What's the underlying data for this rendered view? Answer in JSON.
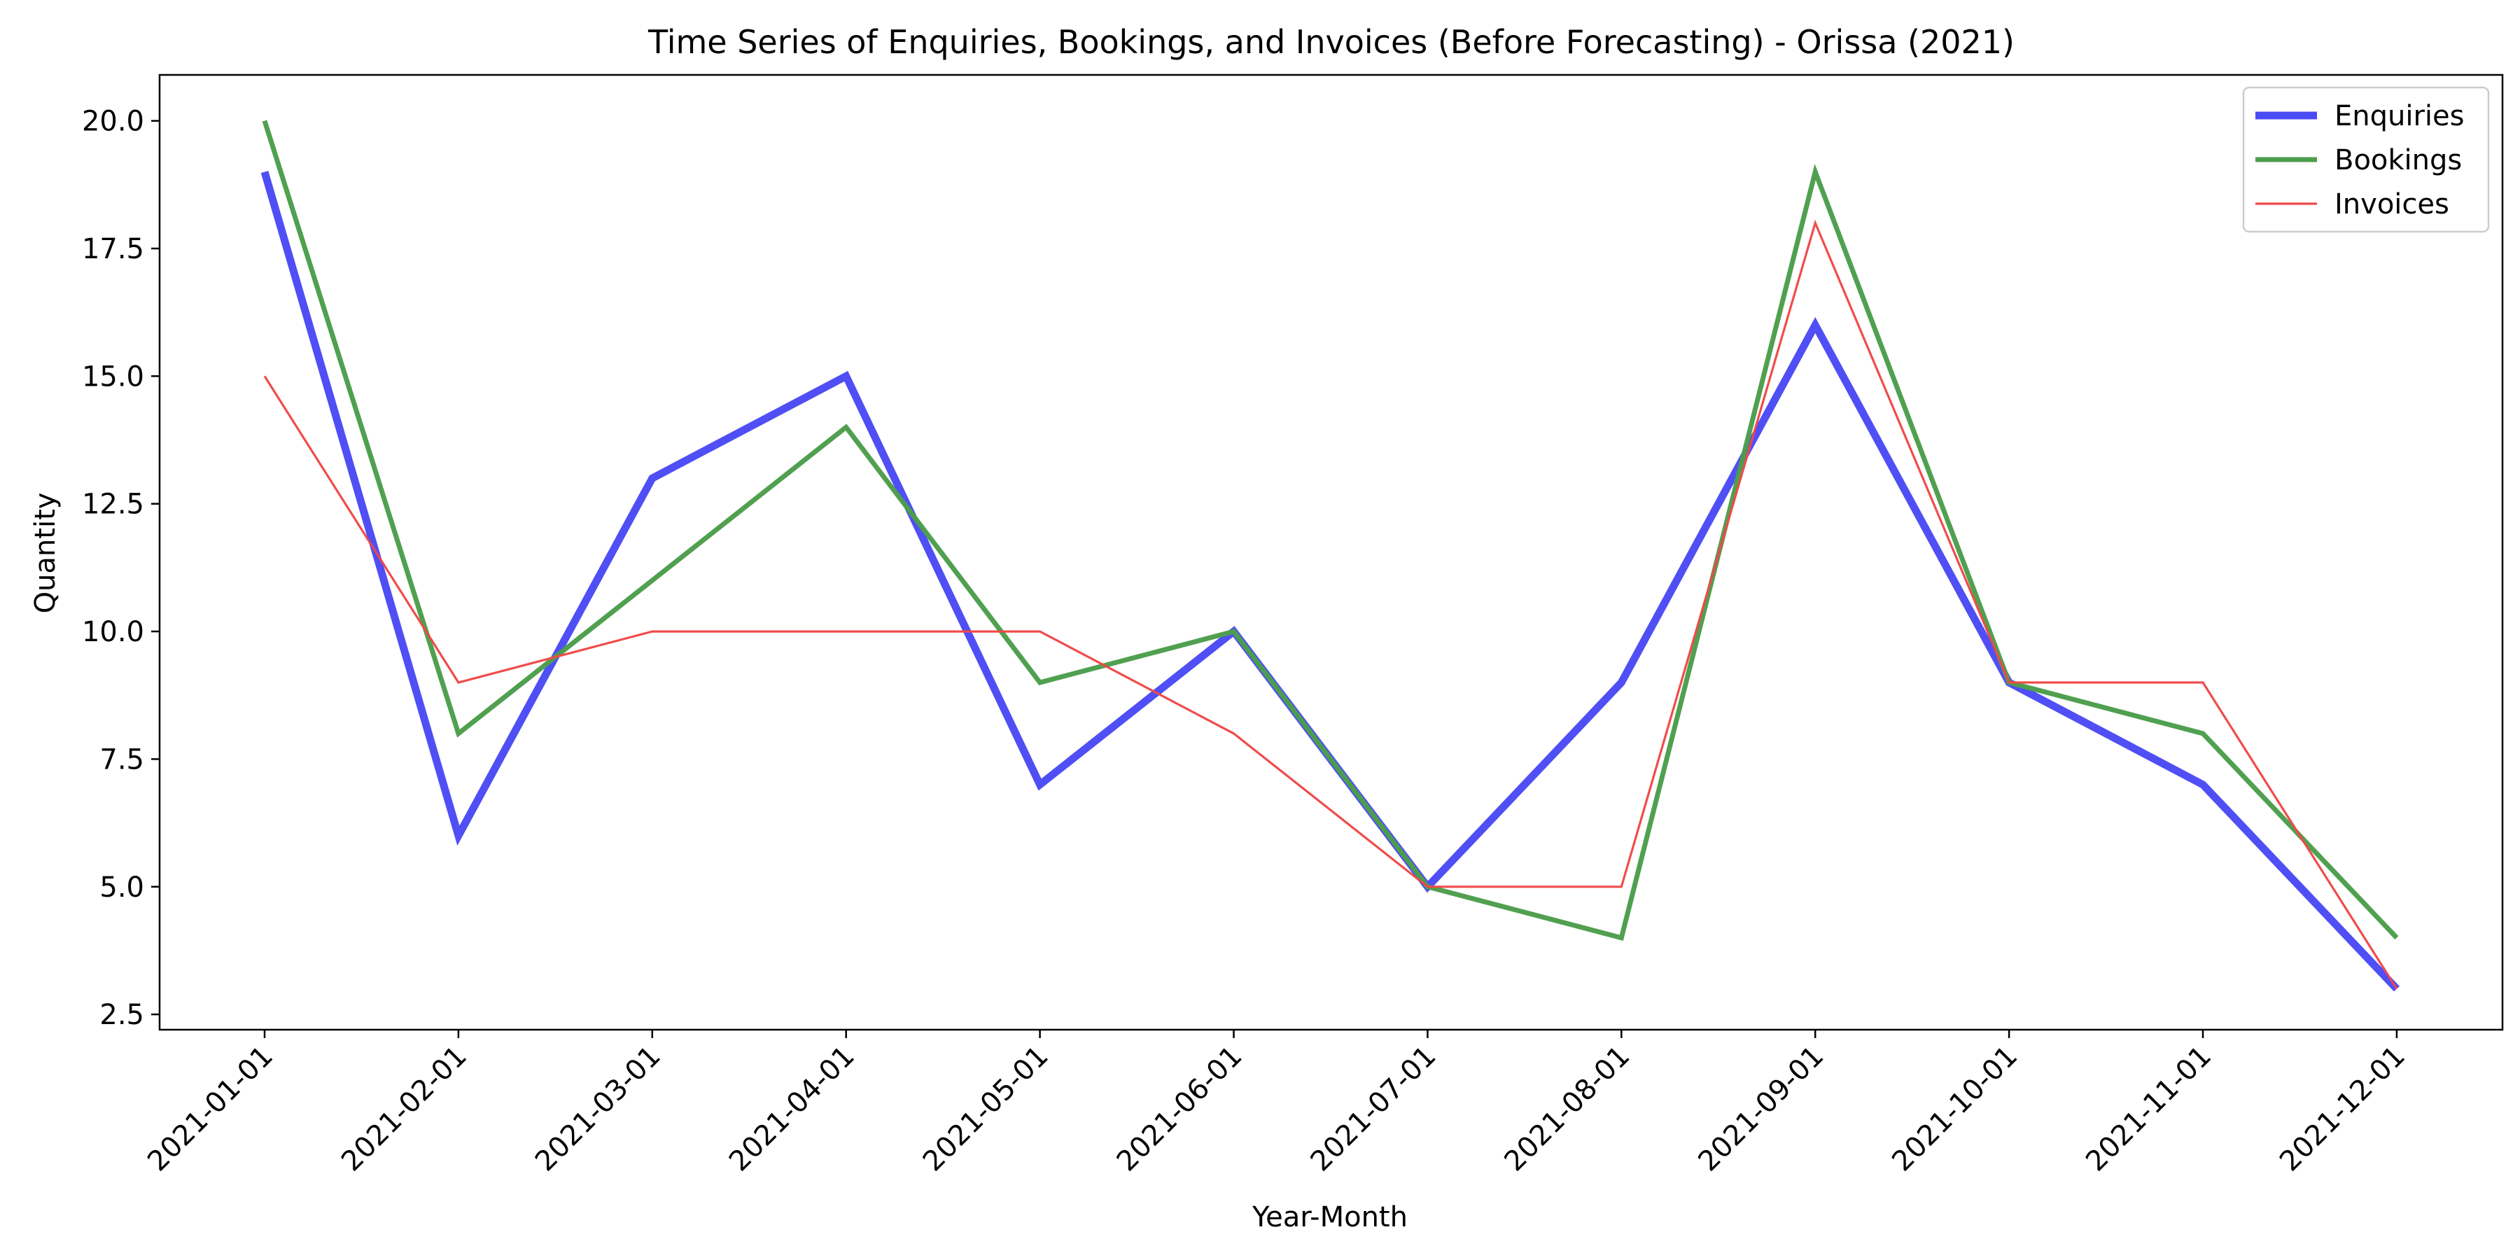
{
  "chart_data": {
    "type": "line",
    "title": "Time Series of Enquiries, Bookings, and Invoices (Before Forecasting) - Orissa (2021)",
    "xlabel": "Year-Month",
    "ylabel": "Quantity",
    "categories": [
      "2021-01-01",
      "2021-02-01",
      "2021-03-01",
      "2021-04-01",
      "2021-05-01",
      "2021-06-01",
      "2021-07-01",
      "2021-08-01",
      "2021-09-01",
      "2021-10-01",
      "2021-11-01",
      "2021-12-01"
    ],
    "ylim": [
      2.2,
      20.9
    ],
    "yticks": [
      "2.5",
      "5.0",
      "7.5",
      "10.0",
      "12.5",
      "15.0",
      "17.5",
      "20.0"
    ],
    "grid": false,
    "legend_position": "top-right",
    "series": [
      {
        "name": "Enquiries",
        "color": "#4b4bf5",
        "values": [
          19,
          6,
          13,
          15,
          7,
          10,
          5,
          9,
          16,
          9,
          7,
          3
        ]
      },
      {
        "name": "Bookings",
        "color": "#4c9e4c",
        "values": [
          20,
          8,
          11,
          14,
          9,
          10,
          5,
          4,
          19,
          9,
          8,
          4
        ]
      },
      {
        "name": "Invoices",
        "color": "#f04848",
        "values": [
          15,
          9,
          10,
          10,
          10,
          8,
          5,
          5,
          18,
          9,
          9,
          3
        ]
      }
    ]
  }
}
